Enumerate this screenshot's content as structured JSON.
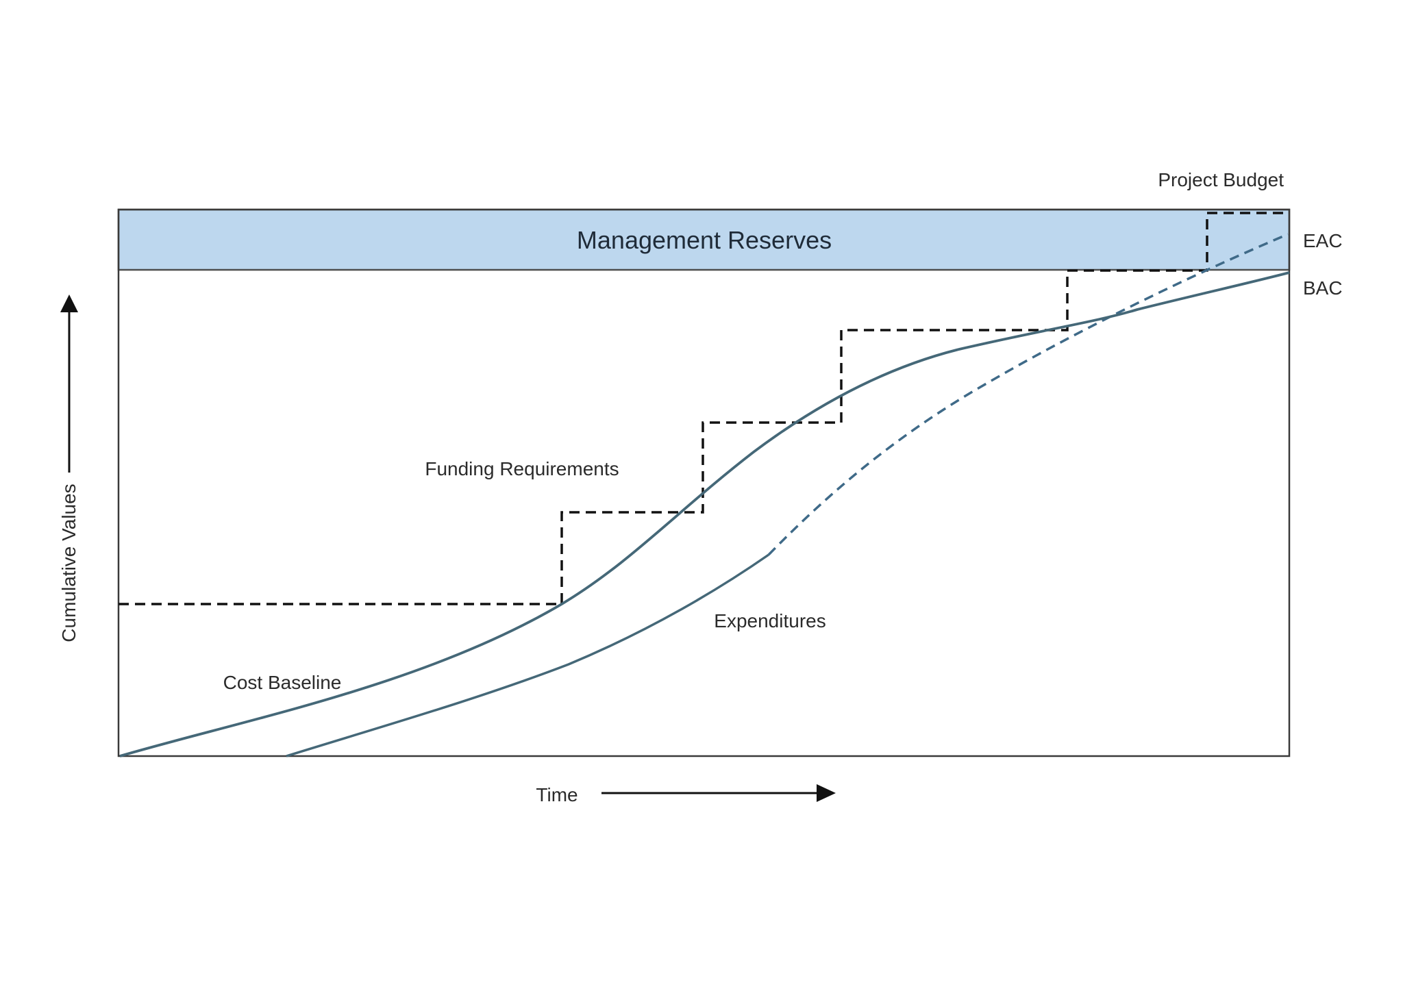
{
  "diagram": {
    "reserve_label": "Management Reserves",
    "project_budget_label": "Project Budget",
    "eac_label": "EAC",
    "bac_label": "BAC",
    "funding_label": "Funding Requirements",
    "expenditures_label": "Expenditures",
    "cost_baseline_label": "Cost Baseline",
    "x_axis_label": "Time",
    "y_axis_label": "Cumulative Values"
  },
  "colors": {
    "reserve_fill": "#bdd7ee",
    "curve": "#456878",
    "eac_dash": "#3f6a88",
    "step_dash": "#111111",
    "frame": "#3a3a3a"
  }
}
